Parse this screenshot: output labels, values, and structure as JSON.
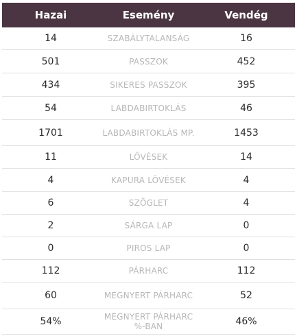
{
  "header": {
    "home": "Hazai",
    "event": "Esemény",
    "away": "Vendég"
  },
  "rows": [
    {
      "home": "14",
      "event": "SZABÁLYTALANSÁG",
      "away": "16"
    },
    {
      "home": "501",
      "event": "PASSZOK",
      "away": "452"
    },
    {
      "home": "434",
      "event": "SIKERES PASSZOK",
      "away": "395"
    },
    {
      "home": "54",
      "event": "LABDABIRTOKLÁS",
      "away": "46"
    },
    {
      "home": "1701",
      "event": "LABDABIRTOKLÁS MP.",
      "away": "1453"
    },
    {
      "home": "11",
      "event": "LÖVÉSEK",
      "away": "14"
    },
    {
      "home": "4",
      "event": "KAPURA LÖVÉSEK",
      "away": "4"
    },
    {
      "home": "6",
      "event": "SZÖGLET",
      "away": "4"
    },
    {
      "home": "2",
      "event": "SÁRGA LAP",
      "away": "0"
    },
    {
      "home": "0",
      "event": "PIROS LAP",
      "away": "0"
    },
    {
      "home": "112",
      "event": "PÁRHARC",
      "away": "112"
    },
    {
      "home": "60",
      "event": "MEGNYERT PÁRHARC",
      "away": "52"
    },
    {
      "home": "54%",
      "event": "MEGNYERT PÁRHARC %-BAN",
      "away": "46%"
    }
  ],
  "colors": {
    "header_bg": "#4b3542",
    "header_text": "#ffffff",
    "value_text": "#2b2b2b",
    "event_text": "#b7b7b7",
    "divider": "#e3dfe1"
  }
}
